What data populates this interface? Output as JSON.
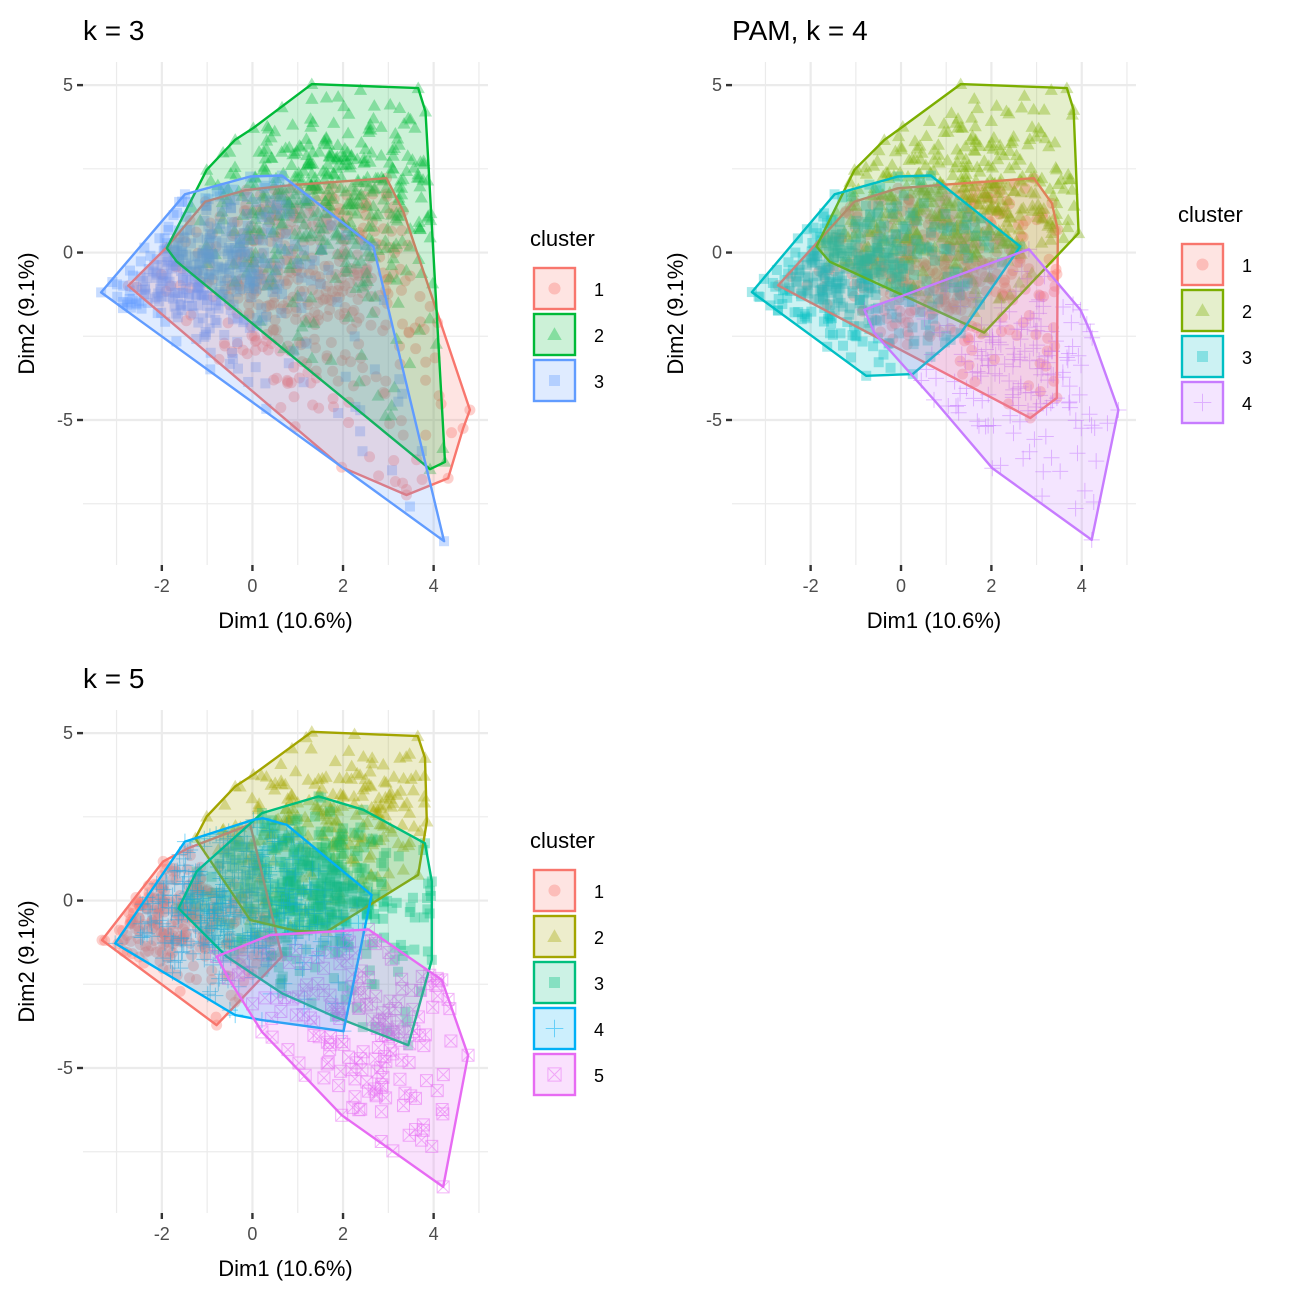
{
  "chart_data": [
    {
      "type": "scatter",
      "id": "k3",
      "title": "k = 3",
      "xlabel": "Dim1 (10.6%)",
      "ylabel": "Dim2 (9.1%)",
      "xlim": [
        -3.74,
        5.2
      ],
      "ylim": [
        -9.33,
        5.69
      ],
      "xticks": [
        -2,
        0,
        2,
        4
      ],
      "yticks": [
        5,
        0,
        -5
      ],
      "grid": true,
      "legend": {
        "title": "cluster",
        "position": "right"
      },
      "series": [
        {
          "name": "1",
          "color": "#F8766D",
          "shape": "circle",
          "center": [
            1.0,
            -0.8
          ],
          "spread": [
            1.3,
            1.7
          ],
          "count": 420,
          "hull": [
            [
              -2.74,
              -0.99
            ],
            [
              -1.89,
              0.16
            ],
            [
              -1.04,
              1.52
            ],
            [
              -0.13,
              1.87
            ],
            [
              0.9,
              2.02
            ],
            [
              2.96,
              2.22
            ],
            [
              3.33,
              1.23
            ],
            [
              4.8,
              -4.7
            ],
            [
              4.65,
              -5.25
            ],
            [
              4.32,
              -6.74
            ],
            [
              3.4,
              -7.24
            ],
            [
              1.97,
              -6.41
            ]
          ]
        },
        {
          "name": "2",
          "color": "#00BA38",
          "shape": "triangle",
          "center": [
            1.6,
            1.6
          ],
          "spread": [
            1.3,
            1.3
          ],
          "count": 420,
          "hull": [
            [
              -1.89,
              0.13
            ],
            [
              -1.01,
              2.47
            ],
            [
              -0.38,
              3.37
            ],
            [
              0.02,
              3.72
            ],
            [
              1.31,
              5.03
            ],
            [
              3.66,
              4.91
            ],
            [
              3.82,
              4.21
            ],
            [
              4.25,
              -6.25
            ],
            [
              3.92,
              -6.47
            ],
            [
              -1.67,
              -0.27
            ]
          ]
        },
        {
          "name": "3",
          "color": "#619CFF",
          "shape": "square",
          "center": [
            -1.2,
            -0.6
          ],
          "spread": [
            1.1,
            1.2
          ],
          "count": 380,
          "hull": [
            [
              -3.34,
              -1.19
            ],
            [
              -1.49,
              1.74
            ],
            [
              -0.05,
              2.27
            ],
            [
              0.65,
              2.3
            ],
            [
              2.67,
              0.18
            ],
            [
              4.23,
              -8.62
            ]
          ]
        }
      ]
    },
    {
      "type": "scatter",
      "id": "pam4",
      "title": "PAM, k = 4",
      "xlabel": "Dim1 (10.6%)",
      "ylabel": "Dim2 (9.1%)",
      "xlim": [
        -3.74,
        5.2
      ],
      "ylim": [
        -9.33,
        5.69
      ],
      "xticks": [
        -2,
        0,
        2,
        4
      ],
      "yticks": [
        5,
        0,
        -5
      ],
      "grid": true,
      "legend": {
        "title": "cluster",
        "position": "right"
      },
      "series": [
        {
          "name": "1",
          "color": "#F8766D",
          "shape": "circle",
          "center": [
            0.9,
            -0.4
          ],
          "spread": [
            1.2,
            1.2
          ],
          "count": 380,
          "hull": [
            [
              -2.72,
              -0.98
            ],
            [
              -1.03,
              1.52
            ],
            [
              -0.07,
              1.92
            ],
            [
              0.88,
              2.02
            ],
            [
              2.94,
              2.22
            ],
            [
              3.34,
              1.47
            ],
            [
              3.47,
              0.68
            ],
            [
              3.45,
              -4.34
            ],
            [
              2.86,
              -4.94
            ]
          ]
        },
        {
          "name": "2",
          "color": "#7CAE00",
          "shape": "triangle",
          "center": [
            1.5,
            1.6
          ],
          "spread": [
            1.3,
            1.1
          ],
          "count": 420,
          "hull": [
            [
              -1.87,
              0.18
            ],
            [
              -1.03,
              2.47
            ],
            [
              -0.37,
              3.36
            ],
            [
              0.04,
              3.76
            ],
            [
              1.32,
              5.03
            ],
            [
              3.67,
              4.91
            ],
            [
              3.82,
              4.26
            ],
            [
              3.93,
              0.58
            ],
            [
              1.84,
              -2.39
            ],
            [
              -1.58,
              -0.27
            ]
          ]
        },
        {
          "name": "3",
          "color": "#00BFC4",
          "shape": "square",
          "center": [
            -1.2,
            -0.4
          ],
          "spread": [
            1.1,
            1.0
          ],
          "count": 380,
          "hull": [
            [
              -3.3,
              -1.18
            ],
            [
              -1.47,
              1.74
            ],
            [
              -0.07,
              2.27
            ],
            [
              0.66,
              2.3
            ],
            [
              2.64,
              0.18
            ],
            [
              1.32,
              -2.41
            ],
            [
              0.26,
              -3.63
            ],
            [
              -0.77,
              -3.68
            ]
          ]
        },
        {
          "name": "4",
          "color": "#C77CFF",
          "shape": "plus",
          "center": [
            2.6,
            -3.4
          ],
          "spread": [
            1.0,
            1.5
          ],
          "count": 160,
          "hull": [
            [
              -0.81,
              -1.71
            ],
            [
              2.83,
              0.1
            ],
            [
              3.97,
              -1.71
            ],
            [
              4.19,
              -2.36
            ],
            [
              4.81,
              -4.7
            ],
            [
              4.22,
              -8.58
            ],
            [
              2.02,
              -6.44
            ],
            [
              0.73,
              -4.4
            ],
            [
              -0.59,
              -2.4
            ]
          ]
        }
      ]
    },
    {
      "type": "scatter",
      "id": "k5",
      "title": "k = 5",
      "xlabel": "Dim1 (10.6%)",
      "ylabel": "Dim2 (9.1%)",
      "xlim": [
        -3.74,
        5.2
      ],
      "ylim": [
        -9.33,
        5.69
      ],
      "xticks": [
        -2,
        0,
        2,
        4
      ],
      "yticks": [
        5,
        0,
        -5
      ],
      "grid": true,
      "legend": {
        "title": "cluster",
        "position": "right"
      },
      "series": [
        {
          "name": "1",
          "color": "#F8766D",
          "shape": "circle",
          "center": [
            -1.8,
            -0.5
          ],
          "spread": [
            0.8,
            0.8
          ],
          "count": 260,
          "hull": [
            [
              -3.32,
              -1.18
            ],
            [
              -1.97,
              1.17
            ],
            [
              -1.41,
              1.57
            ],
            [
              -0.05,
              2.27
            ],
            [
              0.65,
              -1.67
            ],
            [
              -0.79,
              -3.72
            ]
          ]
        },
        {
          "name": "2",
          "color": "#A3A500",
          "shape": "triangle",
          "center": [
            1.8,
            2.4
          ],
          "spread": [
            1.2,
            0.9
          ],
          "count": 240,
          "hull": [
            [
              -1.26,
              1.86
            ],
            [
              -1.01,
              2.51
            ],
            [
              -0.38,
              3.41
            ],
            [
              0.02,
              3.76
            ],
            [
              1.31,
              5.04
            ],
            [
              3.65,
              4.91
            ],
            [
              3.81,
              4.26
            ],
            [
              3.85,
              2.36
            ],
            [
              3.66,
              0.77
            ],
            [
              1.64,
              -0.93
            ],
            [
              0.97,
              -0.91
            ],
            [
              -0.05,
              -0.58
            ]
          ]
        },
        {
          "name": "3",
          "color": "#00BF7D",
          "shape": "square",
          "center": [
            1.4,
            0.3
          ],
          "spread": [
            1.0,
            1.0
          ],
          "count": 420,
          "hull": [
            [
              -1.63,
              -0.23
            ],
            [
              -1.23,
              0.87
            ],
            [
              0.21,
              2.61
            ],
            [
              1.46,
              3.11
            ],
            [
              2.45,
              2.71
            ],
            [
              3.81,
              1.71
            ],
            [
              3.96,
              0.57
            ],
            [
              3.96,
              -1.77
            ],
            [
              3.44,
              -4.32
            ],
            [
              1.82,
              -3.47
            ],
            [
              0.65,
              -2.77
            ],
            [
              -0.57,
              -1.67
            ]
          ]
        },
        {
          "name": "4",
          "color": "#00B0F6",
          "shape": "plus",
          "center": [
            -0.6,
            -0.2
          ],
          "spread": [
            1.1,
            1.0
          ],
          "count": 360,
          "hull": [
            [
              -3.03,
              -1.28
            ],
            [
              -1.49,
              1.76
            ],
            [
              0.02,
              2.41
            ],
            [
              0.23,
              2.46
            ],
            [
              0.76,
              2.26
            ],
            [
              2.63,
              0.17
            ],
            [
              2.01,
              -3.9
            ],
            [
              0.21,
              -3.57
            ],
            [
              -0.38,
              -3.42
            ]
          ]
        },
        {
          "name": "5",
          "color": "#E76BF3",
          "shape": "boxx",
          "center": [
            2.6,
            -3.6
          ],
          "spread": [
            1.0,
            1.5
          ],
          "count": 170,
          "hull": [
            [
              -0.79,
              -1.67
            ],
            [
              0.39,
              -1.03
            ],
            [
              2.56,
              -0.86
            ],
            [
              4.18,
              -2.37
            ],
            [
              4.76,
              -4.62
            ],
            [
              4.21,
              -8.55
            ],
            [
              1.97,
              -6.41
            ],
            [
              0.21,
              -3.92
            ],
            [
              -0.53,
              -2.32
            ]
          ]
        }
      ]
    }
  ]
}
